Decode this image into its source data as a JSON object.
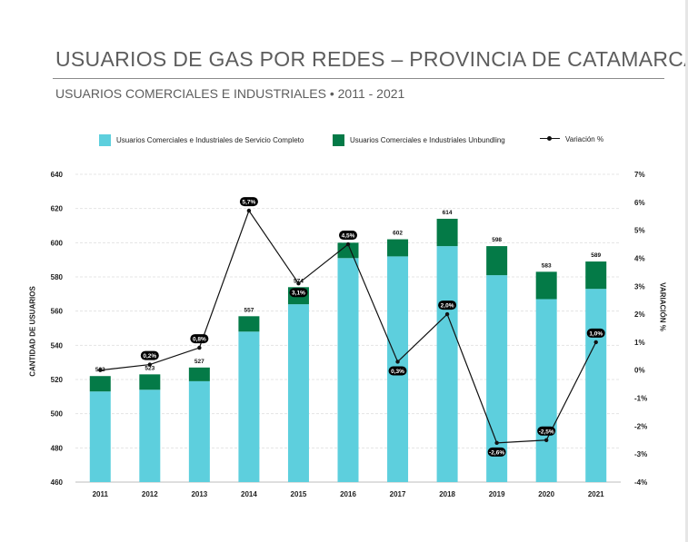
{
  "title": "USUARIOS DE GAS POR REDES – PROVINCIA DE CATAMARCA",
  "subtitle": "USUARIOS COMERCIALES E INDUSTRIALES • 2011 - 2021",
  "chart_data": {
    "type": "bar",
    "stacked": true,
    "categories": [
      "2011",
      "2012",
      "2013",
      "2014",
      "2015",
      "2016",
      "2017",
      "2018",
      "2019",
      "2020",
      "2021"
    ],
    "series": [
      {
        "name": "Usuarios Comerciales e Industriales de Servicio Completo",
        "values": [
          513,
          514,
          519,
          548,
          564,
          591,
          592,
          598,
          581,
          567,
          573
        ],
        "color": "#5dcfdd"
      },
      {
        "name": "Usuarios Comerciales e Industriales Unbundling",
        "values": [
          9,
          9,
          8,
          9,
          10,
          9,
          10,
          16,
          17,
          16,
          16
        ],
        "color": "#047a47"
      }
    ],
    "totals": [
      522,
      523,
      527,
      557,
      574,
      600,
      602,
      614,
      598,
      583,
      589
    ],
    "total_labels": [
      "522",
      "523",
      "527",
      "557",
      "574",
      "600",
      "602",
      "614",
      "598",
      "583",
      "589"
    ],
    "variation": {
      "name": "Variación %",
      "values": [
        0.0,
        0.2,
        0.8,
        5.7,
        3.1,
        4.5,
        0.3,
        2.0,
        -2.6,
        -2.5,
        1.0
      ],
      "labels": [
        "",
        "0,2%",
        "0,8%",
        "5,7%",
        "3,1%",
        "4,5%",
        "0,3%",
        "2,0%",
        "-2,6%",
        "-2,5%",
        "1,0%"
      ]
    },
    "ylabel": "CANTIDAD DE USUARIOS",
    "y2label": "VARIACIÓN %",
    "ylim": [
      460,
      640
    ],
    "y2lim": [
      -4,
      7
    ],
    "yticks": [
      "460",
      "480",
      "500",
      "520",
      "540",
      "560",
      "580",
      "600",
      "620",
      "640"
    ],
    "y2ticks": [
      "-4%",
      "-3%",
      "-2%",
      "-1%",
      "0%",
      "1%",
      "2%",
      "3%",
      "4%",
      "5%",
      "6%",
      "7%"
    ],
    "grid": true,
    "legend": "top"
  }
}
